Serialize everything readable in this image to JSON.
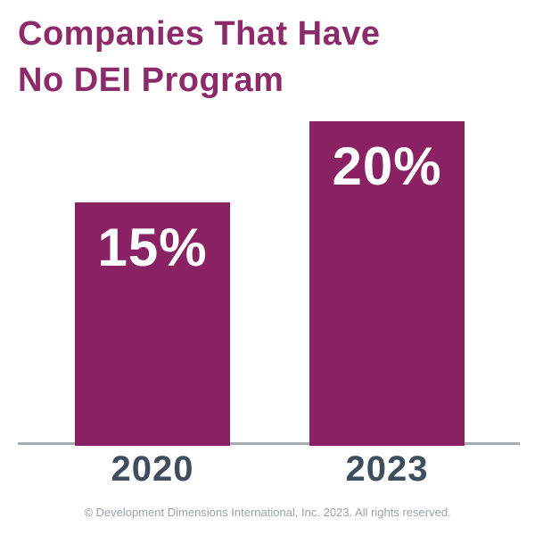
{
  "title": "Companies That Have\nNo DEI Program",
  "footer": "© Development Dimensions International, Inc. 2023. All rights reserved.",
  "colors": {
    "bar": "#8A2162",
    "title": "#8C2A6A",
    "axis": "#A6ABB0",
    "year_label": "#3F4D5C",
    "value_label": "#FFFFFF",
    "footer": "#9DA2A8",
    "background": "#FFFFFF"
  },
  "chart_data": {
    "type": "bar",
    "title": "Companies That Have No DEI Program",
    "categories": [
      "2020",
      "2023"
    ],
    "values": [
      15,
      20
    ],
    "value_labels": [
      "15%",
      "20%"
    ],
    "xlabel": "",
    "ylabel": "",
    "ylim": [
      0,
      25
    ],
    "grid": false,
    "legend": "none",
    "bar_color": "#8A2162",
    "value_label_position": "inside-top",
    "axis_line": "x-only"
  }
}
